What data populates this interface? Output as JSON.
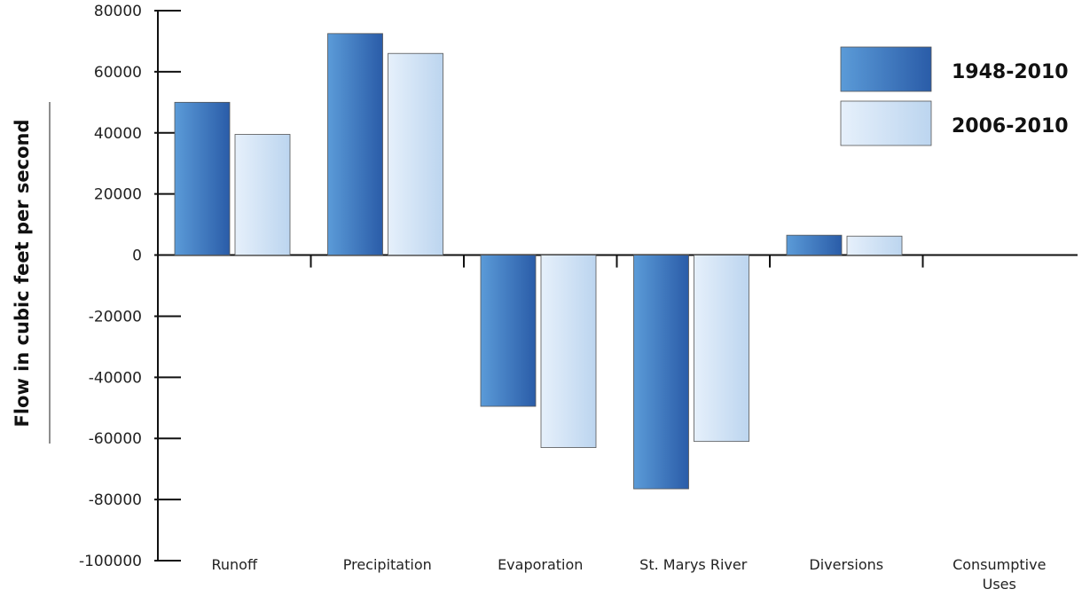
{
  "chart_data": {
    "type": "bar",
    "categories": [
      "Runoff",
      "Precipitation",
      "Evaporation",
      "St. Marys River",
      "Diversions",
      "Consumptive Uses"
    ],
    "series": [
      {
        "name": "1948-2010",
        "values": [
          50000,
          72500,
          -49500,
          -76500,
          6500,
          0
        ]
      },
      {
        "name": "2006-2010",
        "values": [
          39500,
          66000,
          -63000,
          -61000,
          6200,
          0
        ]
      }
    ],
    "title": "",
    "xlabel": "",
    "ylabel": "Flow in cubic feet per second",
    "ylim": [
      -100000,
      80000
    ],
    "yticks": [
      "80000",
      "60000",
      "40000",
      "20000",
      "0",
      "-20000",
      "-40000",
      "-60000",
      "-80000",
      "-100000"
    ],
    "grid": false,
    "legend_position": "top-right",
    "colors": {
      "1948-2010": "#2f64b4",
      "2006-2010": "#cfe0f4"
    }
  }
}
